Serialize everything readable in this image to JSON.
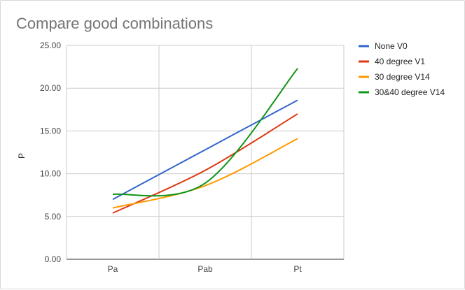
{
  "chart_data": {
    "type": "line",
    "title": "Compare good combinations",
    "xlabel": "",
    "ylabel": "P",
    "categories": [
      "Pa",
      "Pab",
      "Pt"
    ],
    "ylim": [
      0,
      25
    ],
    "yticks": [
      "0.00",
      "5.00",
      "10.00",
      "15.00",
      "20.00",
      "25.00"
    ],
    "grid": true,
    "smooth": true,
    "legend_position": "right",
    "series": [
      {
        "name": "None V0",
        "color": "#3366cc",
        "values": [
          7.0,
          12.8,
          18.6
        ]
      },
      {
        "name": "40 degree V1",
        "color": "#dc3912",
        "values": [
          5.4,
          10.4,
          17.0
        ]
      },
      {
        "name": "30 degree V14",
        "color": "#ff9900",
        "values": [
          6.0,
          8.6,
          14.1
        ]
      },
      {
        "name": "30&40 degree V14",
        "color": "#109618",
        "values": [
          7.6,
          8.9,
          22.3
        ]
      }
    ]
  }
}
